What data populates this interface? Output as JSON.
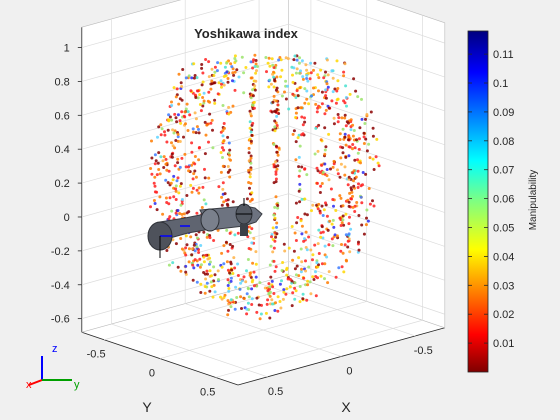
{
  "figure": {
    "title": "Yoshikawa index"
  },
  "chart_data": {
    "type": "scatter",
    "subtype": "3d-scatter-with-robot-arm",
    "title": "Yoshikawa index",
    "axes": {
      "x": {
        "label": "X",
        "ticks": [
          "0.5",
          "0",
          "-0.5"
        ],
        "range": [
          -0.7,
          0.7
        ]
      },
      "y": {
        "label": "Y",
        "ticks": [
          "-0.5",
          "0",
          "0.5"
        ],
        "range": [
          -0.7,
          0.7
        ]
      },
      "z": {
        "label": "",
        "ticks": [
          "1",
          "0.8",
          "0.6",
          "0.4",
          "0.2",
          "0",
          "-0.2",
          "-0.4",
          "-0.6"
        ],
        "range": [
          -0.68,
          1.12
        ]
      }
    },
    "grid": true,
    "point_cloud": {
      "shape": "sphere",
      "center_z": 0.25,
      "radius": 0.85,
      "color_metric": "Manipulability"
    },
    "colorbar": {
      "label": "Manipulability",
      "ticks": [
        "0.11",
        "0.1",
        "0.09",
        "0.08",
        "0.07",
        "0.06",
        "0.05",
        "0.04",
        "0.03",
        "0.02",
        "0.01"
      ],
      "range": [
        0.0,
        0.118
      ],
      "colormap": "jet-reversed",
      "colors": [
        "#7f0000",
        "#ff0000",
        "#ff8000",
        "#ffff00",
        "#80ff80",
        "#00ffff",
        "#0080ff",
        "#0000ff",
        "#00007f"
      ]
    },
    "orientation_triad": {
      "labels": [
        "z",
        "x",
        "y"
      ],
      "colors": [
        "#0000ff",
        "#ff0000",
        "#00a000"
      ]
    }
  }
}
